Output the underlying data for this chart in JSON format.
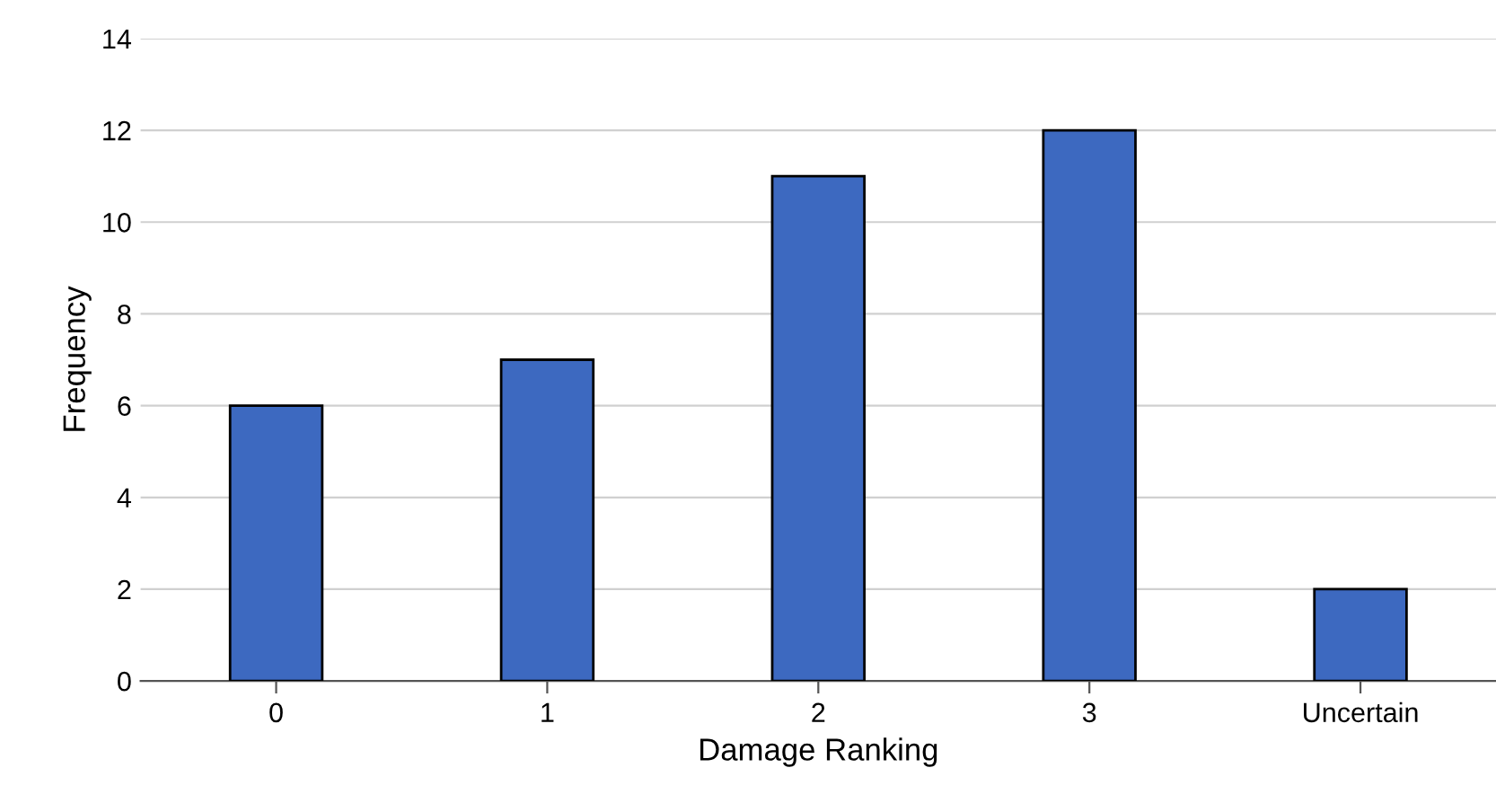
{
  "chart_data": {
    "type": "bar",
    "xlabel": "Damage Ranking",
    "ylabel": "Frequency",
    "categories": [
      "0",
      "1",
      "2",
      "3",
      "Uncertain"
    ],
    "values": [
      6,
      7,
      11,
      12,
      2
    ],
    "color": "#3d69c0",
    "ylim": [
      0,
      14
    ],
    "yticks": [
      0,
      2,
      4,
      6,
      8,
      10,
      12,
      14
    ],
    "grid": "y",
    "legend": false
  }
}
